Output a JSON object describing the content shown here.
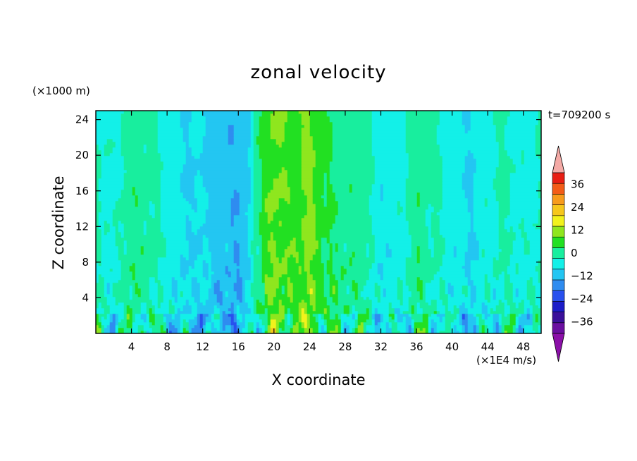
{
  "chart_data": {
    "type": "heatmap",
    "title": "zonal velocity",
    "xlabel": "X coordinate",
    "ylabel": "Z coordinate",
    "x_unit_label": "(×1E4 m/s)",
    "y_unit_label": "(×1000 m)",
    "time_label": "t=709200 s",
    "xlim": [
      0,
      50
    ],
    "ylim": [
      0,
      25
    ],
    "x_ticks": [
      4,
      8,
      12,
      16,
      20,
      24,
      28,
      32,
      36,
      40,
      44,
      48
    ],
    "y_ticks": [
      4,
      8,
      12,
      16,
      20,
      24
    ],
    "colorbar": {
      "levels": [
        -42,
        -36,
        -30,
        -24,
        -18,
        -12,
        -6,
        0,
        6,
        12,
        18,
        24,
        30,
        36,
        42
      ],
      "tick_values": [
        -36,
        -24,
        -12,
        0,
        12,
        24,
        36
      ],
      "tick_labels": [
        "−36",
        "−24",
        "−12",
        "0",
        "12",
        "24",
        "36"
      ],
      "colors": [
        "#6a0fa0",
        "#3a109a",
        "#1c1cc8",
        "#2850ee",
        "#2f8cf0",
        "#23c6f2",
        "#13f0e8",
        "#18ee9e",
        "#22e022",
        "#8fe61e",
        "#f2f21c",
        "#f6c71c",
        "#f79b1c",
        "#f35c18",
        "#e81e14"
      ],
      "under_color": "#8b10a8",
      "over_color": "#f4aaa6"
    },
    "field_description_regions": [
      {
        "x": [
          0,
          3
        ],
        "z": [
          0,
          25
        ],
        "value": 0
      },
      {
        "x": [
          4,
          9
        ],
        "z": [
          0,
          25
        ],
        "value": 4
      },
      {
        "x": [
          10,
          18
        ],
        "z": [
          0,
          25
        ],
        "value": -8
      },
      {
        "x": [
          19,
          26
        ],
        "z": [
          0,
          25
        ],
        "value": 12
      },
      {
        "x": [
          27,
          34
        ],
        "z": [
          0,
          25
        ],
        "value": 4
      },
      {
        "x": [
          35,
          41
        ],
        "z": [
          0,
          25
        ],
        "value": 2
      },
      {
        "x": [
          42,
          50
        ],
        "z": [
          0,
          25
        ],
        "value": -2
      }
    ]
  }
}
